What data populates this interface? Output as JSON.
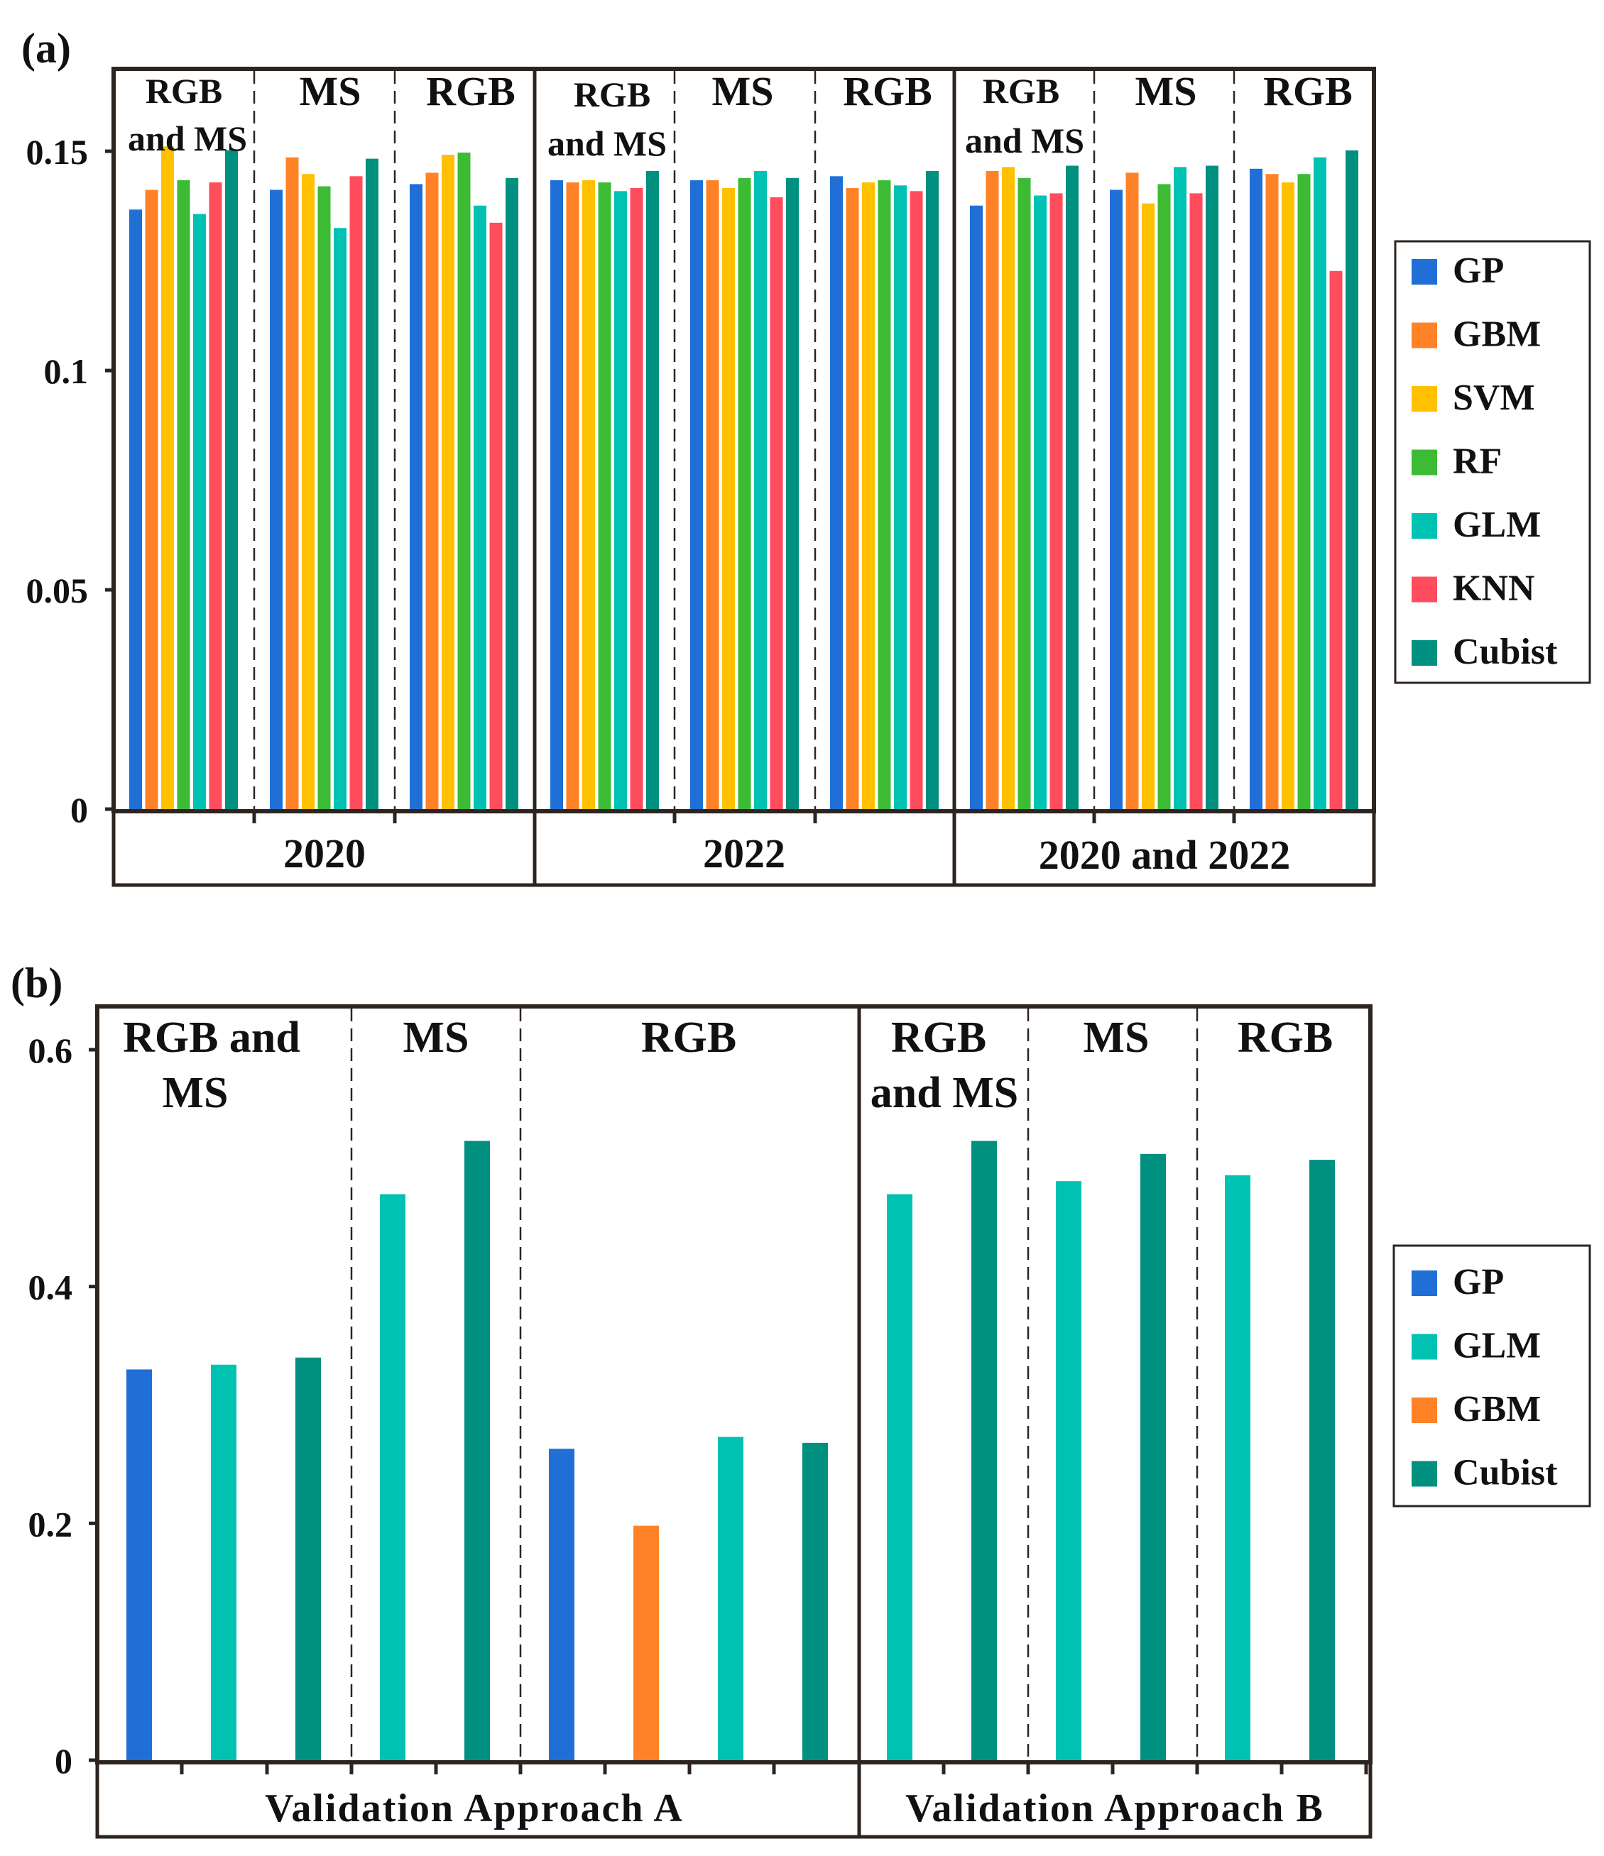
{
  "colors": {
    "GP": "#1f6fd6",
    "GBM": "#ff8326",
    "SVM": "#ffc000",
    "RF": "#3dbb34",
    "GLM": "#00c2b3",
    "KNN": "#ff4d5e",
    "Cubist": "#009080",
    "frame": "#2d2420"
  },
  "chart_data": [
    {
      "panel_label": "(a)",
      "type": "bar",
      "ylim": [
        0,
        0.1683
      ],
      "yticks": [
        "0",
        "0.05",
        "0.1",
        "0.15"
      ],
      "ytick_values": [
        0,
        0.05,
        0.1,
        0.15
      ],
      "legend": [
        "GP",
        "GBM",
        "SVM",
        "RF",
        "GLM",
        "KNN",
        "Cubist"
      ],
      "legend_placement": "right",
      "year_groups": [
        "2020",
        "2022",
        "2020 and 2022"
      ],
      "sensor_groups": [
        "RGB and MS",
        "MS",
        "RGB",
        "RGB and MS",
        "MS",
        "RGB",
        "RGB and MS",
        "MS",
        "RGB"
      ],
      "series_values": [
        [
          0.1367,
          0.1412,
          0.1511,
          0.1434,
          0.1357,
          0.1429,
          0.1502
        ],
        [
          0.1412,
          0.1486,
          0.1448,
          0.142,
          0.1325,
          0.1443,
          0.1483
        ],
        [
          0.1425,
          0.1451,
          0.1492,
          0.1497,
          0.1376,
          0.1337,
          0.1439
        ],
        [
          0.1434,
          0.1429,
          0.1434,
          0.1429,
          0.1409,
          0.1416,
          0.1455
        ],
        [
          0.1434,
          0.1434,
          0.1416,
          0.1439,
          0.1455,
          0.1395,
          0.1439
        ],
        [
          0.1443,
          0.1416,
          0.1429,
          0.1434,
          0.1422,
          0.1409,
          0.1455
        ],
        [
          0.1376,
          0.1455,
          0.1464,
          0.1439,
          0.1399,
          0.1404,
          0.1467
        ],
        [
          0.1412,
          0.1451,
          0.1381,
          0.1425,
          0.1464,
          0.1404,
          0.1467
        ],
        [
          0.146,
          0.1448,
          0.1429,
          0.1448,
          0.1486,
          0.1227,
          0.1502
        ]
      ]
    },
    {
      "panel_label": "(b)",
      "type": "bar",
      "ylim": [
        0,
        0.6
      ],
      "yticks": [
        "0",
        "0.2",
        "0.4",
        "0.6"
      ],
      "ytick_values": [
        0,
        0.2,
        0.4,
        0.6
      ],
      "legend": [
        "GP",
        "GLM",
        "GBM",
        "Cubist"
      ],
      "legend_placement": "right",
      "approach_groups": [
        "Validation Approach A",
        "Validation Approach B"
      ],
      "sensor_groups": [
        "RGB and MS",
        "MS",
        "RGB",
        "RGB and MS",
        "MS",
        "RGB"
      ],
      "bars": [
        {
          "model": "GP",
          "value": 0.33
        },
        {
          "model": "GLM",
          "value": 0.334
        },
        {
          "model": "Cubist",
          "value": 0.34
        },
        {
          "model": "GLM",
          "value": 0.478
        },
        {
          "model": "Cubist",
          "value": 0.523
        },
        {
          "model": "GP",
          "value": 0.263
        },
        {
          "model": "GBM",
          "value": 0.198
        },
        {
          "model": "GLM",
          "value": 0.273
        },
        {
          "model": "Cubist",
          "value": 0.268
        },
        {
          "model": "GLM",
          "value": 0.478
        },
        {
          "model": "Cubist",
          "value": 0.523
        },
        {
          "model": "GLM",
          "value": 0.489
        },
        {
          "model": "Cubist",
          "value": 0.512
        },
        {
          "model": "GLM",
          "value": 0.494
        },
        {
          "model": "Cubist",
          "value": 0.507
        }
      ]
    }
  ]
}
